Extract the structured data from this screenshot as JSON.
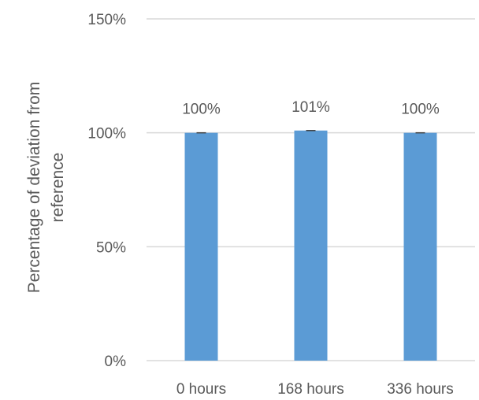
{
  "chart_data": {
    "type": "bar",
    "categories": [
      "0 hours",
      "168 hours",
      "336 hours"
    ],
    "values": [
      100,
      101,
      100
    ],
    "data_labels": [
      "100%",
      "101%",
      "100%"
    ],
    "error_bars": true,
    "title": "",
    "xlabel": "",
    "ylabel_lines": [
      "Percentage of deviation from",
      "reference"
    ],
    "ylim": [
      0,
      150
    ],
    "yticks": [
      0,
      50,
      100,
      150
    ],
    "ytick_labels": [
      "0%",
      "50%",
      "100%",
      "150%"
    ],
    "grid": "horizontal",
    "legend": "none",
    "colors": {
      "bar": "#5b9bd5",
      "grid": "#d9d9d9",
      "error_bar": "#404040"
    }
  }
}
